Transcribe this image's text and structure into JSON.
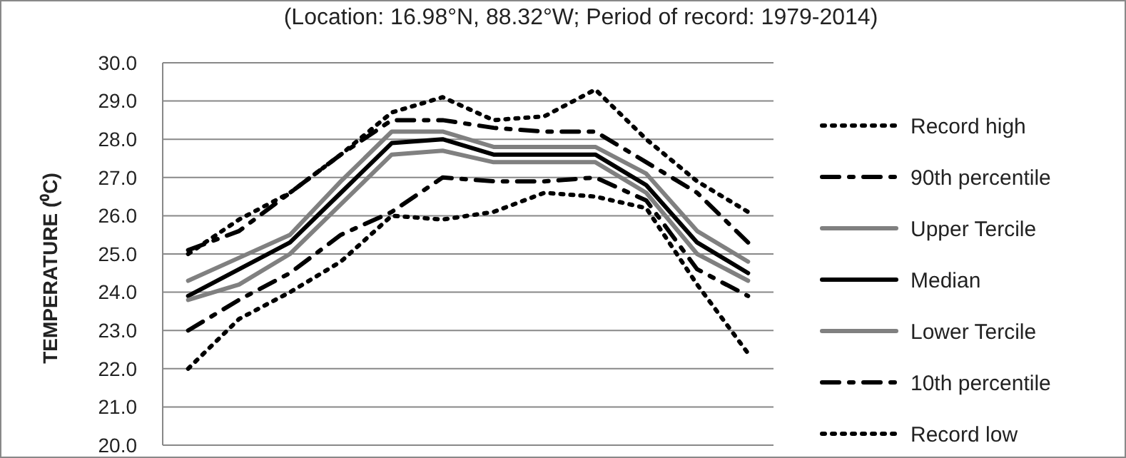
{
  "chart_data": {
    "type": "line",
    "title": "(Location: 16.98°N, 88.32°W; Period of record: 1979-2014)",
    "ylabel": "TEMPERATURE (⁰C)",
    "categories": [
      null,
      null,
      null,
      null,
      null,
      null,
      null,
      null,
      null,
      null,
      null,
      null
    ],
    "ylim": [
      20,
      30
    ],
    "yticks": [
      {
        "value": 20,
        "label": "20.0"
      },
      {
        "value": 21,
        "label": "21.0"
      },
      {
        "value": 22,
        "label": "22.0"
      },
      {
        "value": 23,
        "label": "23.0"
      },
      {
        "value": 24,
        "label": "24.0"
      },
      {
        "value": 25,
        "label": "25.0"
      },
      {
        "value": 26,
        "label": "26.0"
      },
      {
        "value": 27,
        "label": "27.0"
      },
      {
        "value": 28,
        "label": "28.0"
      },
      {
        "value": 29,
        "label": "29.0"
      },
      {
        "value": 30,
        "label": "30.0"
      }
    ],
    "grid": "y",
    "legend": "right",
    "series": [
      {
        "name": "Record high",
        "color": "#000000",
        "line_style": "dotted",
        "values": [
          25.0,
          25.9,
          26.6,
          27.6,
          28.7,
          29.1,
          28.5,
          28.6,
          29.3,
          28.0,
          26.9,
          26.1
        ]
      },
      {
        "name": "90th percentile",
        "color": "#000000",
        "line_style": "dashed",
        "values": [
          25.1,
          25.6,
          26.6,
          27.6,
          28.5,
          28.5,
          28.3,
          28.2,
          28.2,
          27.4,
          26.6,
          25.3
        ]
      },
      {
        "name": "Upper Tercile",
        "color": "#808080",
        "line_style": "solid",
        "values": [
          24.3,
          24.9,
          25.5,
          26.9,
          28.2,
          28.2,
          27.8,
          27.8,
          27.8,
          27.1,
          25.6,
          24.8
        ]
      },
      {
        "name": "Median",
        "color": "#000000",
        "line_style": "solid",
        "values": [
          23.9,
          24.6,
          25.3,
          26.6,
          27.9,
          28.0,
          27.6,
          27.6,
          27.6,
          26.8,
          25.3,
          24.5
        ]
      },
      {
        "name": "Lower Tercile",
        "color": "#808080",
        "line_style": "solid",
        "values": [
          23.8,
          24.2,
          25.0,
          26.3,
          27.6,
          27.7,
          27.4,
          27.4,
          27.4,
          26.6,
          25.0,
          24.3
        ]
      },
      {
        "name": "10th percentile",
        "color": "#000000",
        "line_style": "dashed",
        "values": [
          23.0,
          23.8,
          24.5,
          25.5,
          26.1,
          27.0,
          26.9,
          26.9,
          27.0,
          26.4,
          24.6,
          23.9
        ]
      },
      {
        "name": "Record low",
        "color": "#000000",
        "line_style": "dotted",
        "values": [
          22.0,
          23.3,
          24.0,
          24.8,
          26.0,
          25.9,
          26.1,
          26.6,
          26.5,
          26.2,
          24.2,
          22.4
        ]
      }
    ]
  }
}
